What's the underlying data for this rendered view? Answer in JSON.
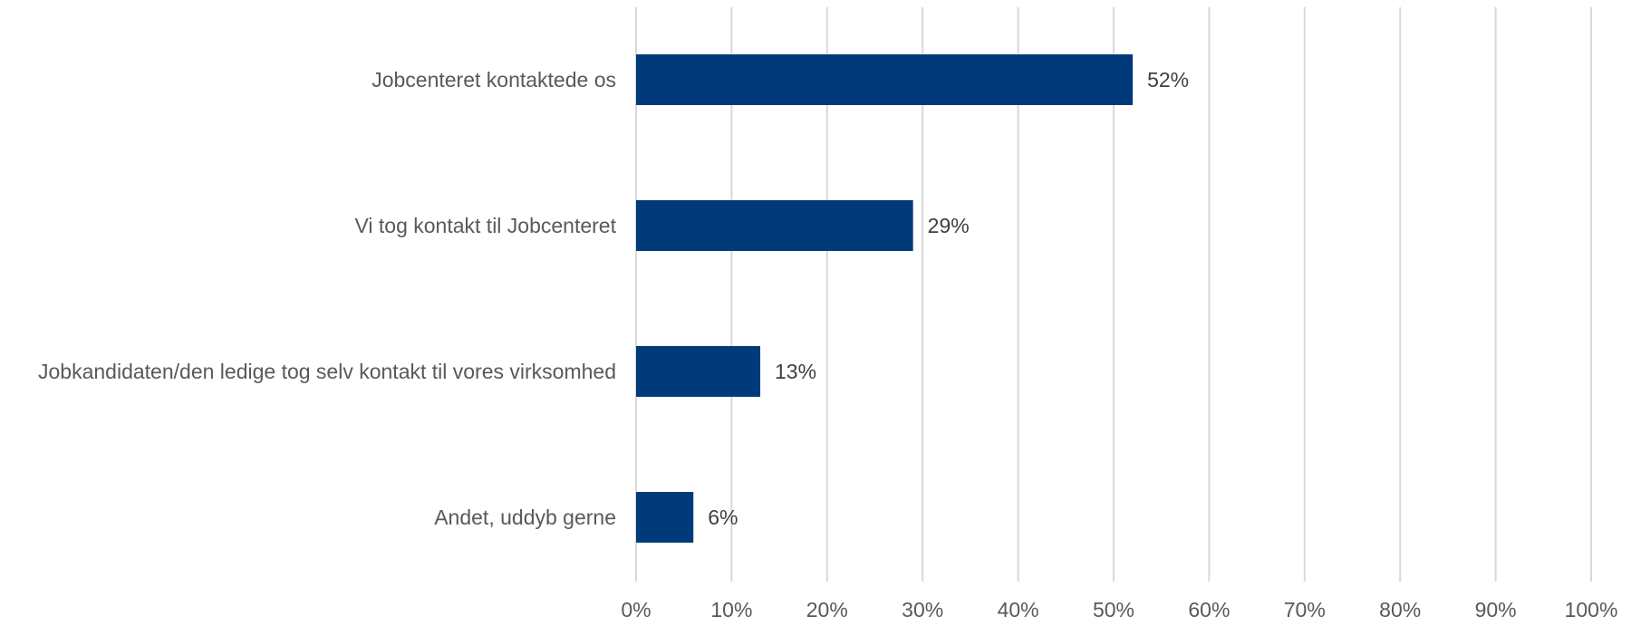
{
  "chart_data": {
    "type": "bar",
    "orientation": "horizontal",
    "title": "",
    "xlabel": "",
    "ylabel": "",
    "categories": [
      "Jobcenteret kontaktede os",
      "Vi tog kontakt til Jobcenteret",
      "Jobkandidaten/den ledige tog selv kontakt til vores virksomhed",
      "Andet, uddyb gerne"
    ],
    "values": [
      52,
      29,
      13,
      6
    ],
    "value_labels": [
      "52%",
      "29%",
      "13%",
      "6%"
    ],
    "xlim": [
      0,
      100
    ],
    "ticks": [
      0,
      10,
      20,
      30,
      40,
      50,
      60,
      70,
      80,
      90,
      100
    ],
    "tick_labels": [
      "0%",
      "10%",
      "20%",
      "30%",
      "40%",
      "50%",
      "60%",
      "70%",
      "80%",
      "90%",
      "100%"
    ],
    "grid": "vertical",
    "legend": "none",
    "colors": {
      "bar": "#003a7a",
      "grid": "#d9d9d9",
      "text": "#595959"
    }
  }
}
